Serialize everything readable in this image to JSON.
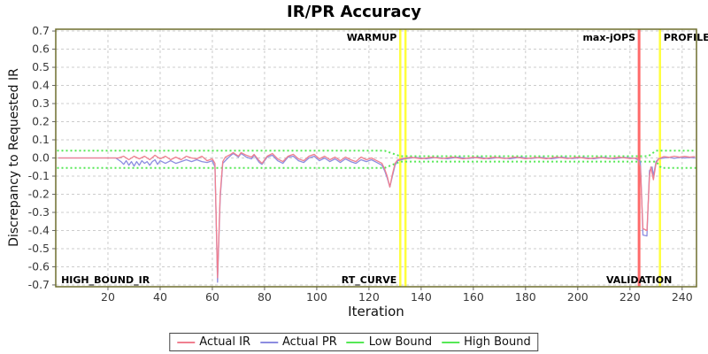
{
  "title": "IR/PR Accuracy",
  "axes": {
    "x_label": "Iteration",
    "y_label": "Discrepancy to Requested IR",
    "x_ticks": [
      20,
      40,
      60,
      80,
      100,
      120,
      140,
      160,
      180,
      200,
      220,
      240
    ],
    "y_ticks": [
      0.7,
      0.6,
      0.5,
      0.4,
      0.3,
      0.2,
      0.1,
      0.0,
      -0.1,
      -0.2,
      -0.3,
      -0.4,
      -0.5,
      -0.6,
      -0.7
    ]
  },
  "colors": {
    "grid": "#cccccc",
    "plot_border": "#6e6e2e",
    "tick_text": "#3a3a3a",
    "annotation_text": "#000000",
    "warmup_marker": "#ffff3c",
    "profile_marker": "#ffff3c",
    "maxjops_marker": "#ff6a6a"
  },
  "chart_data": {
    "type": "line",
    "title": "IR/PR Accuracy",
    "xlabel": "Iteration",
    "ylabel": "Discrepancy to Requested IR",
    "xlim": [
      0,
      245.5
    ],
    "ylim": [
      -0.7,
      0.7
    ],
    "grid": true,
    "legend_position": "bottom",
    "series": [
      {
        "name": "Actual IR",
        "color": "#f08090",
        "style": "solid",
        "points": [
          [
            1,
            0
          ],
          [
            10,
            0
          ],
          [
            20,
            0
          ],
          [
            24,
            0
          ],
          [
            26,
            0.01
          ],
          [
            28,
            -0.01
          ],
          [
            30,
            0.01
          ],
          [
            32,
            -0.005
          ],
          [
            34,
            0.01
          ],
          [
            36,
            -0.01
          ],
          [
            38,
            0.015
          ],
          [
            40,
            -0.005
          ],
          [
            42,
            0.01
          ],
          [
            44,
            -0.01
          ],
          [
            46,
            0.005
          ],
          [
            48,
            -0.01
          ],
          [
            50,
            0.01
          ],
          [
            52,
            0
          ],
          [
            54,
            -0.005
          ],
          [
            56,
            0.01
          ],
          [
            58,
            -0.015
          ],
          [
            60,
            -0.005
          ],
          [
            61,
            -0.03
          ],
          [
            62,
            -0.66
          ],
          [
            63,
            -0.2
          ],
          [
            64,
            -0.02
          ],
          [
            65,
            0.005
          ],
          [
            67,
            0.02
          ],
          [
            68,
            0.03
          ],
          [
            70,
            0.01
          ],
          [
            71,
            0.03
          ],
          [
            73,
            0.015
          ],
          [
            75,
            0.005
          ],
          [
            76,
            0.02
          ],
          [
            78,
            -0.015
          ],
          [
            79,
            -0.03
          ],
          [
            81,
            0.01
          ],
          [
            83,
            0.025
          ],
          [
            85,
            -0.005
          ],
          [
            87,
            -0.02
          ],
          [
            89,
            0.01
          ],
          [
            91,
            0.02
          ],
          [
            93,
            -0.005
          ],
          [
            95,
            -0.015
          ],
          [
            97,
            0.01
          ],
          [
            99,
            0.02
          ],
          [
            101,
            -0.005
          ],
          [
            103,
            0.01
          ],
          [
            105,
            -0.01
          ],
          [
            107,
            0.005
          ],
          [
            109,
            -0.015
          ],
          [
            111,
            0.005
          ],
          [
            113,
            -0.01
          ],
          [
            115,
            -0.02
          ],
          [
            117,
            0.005
          ],
          [
            119,
            -0.01
          ],
          [
            121,
            0
          ],
          [
            123,
            -0.015
          ],
          [
            125,
            -0.03
          ],
          [
            126,
            -0.06
          ],
          [
            127,
            -0.1
          ],
          [
            128,
            -0.16
          ],
          [
            129,
            -0.09
          ],
          [
            130,
            -0.03
          ],
          [
            131,
            -0.01
          ],
          [
            133,
            -0.003
          ],
          [
            136,
            0.004
          ],
          [
            140,
            -0.004
          ],
          [
            144,
            0.004
          ],
          [
            148,
            -0.003
          ],
          [
            152,
            0.005
          ],
          [
            156,
            -0.005
          ],
          [
            160,
            0.004
          ],
          [
            164,
            -0.004
          ],
          [
            168,
            0.004
          ],
          [
            172,
            -0.003
          ],
          [
            176,
            0.005
          ],
          [
            180,
            -0.004
          ],
          [
            184,
            0.003
          ],
          [
            188,
            -0.004
          ],
          [
            192,
            0.005
          ],
          [
            196,
            -0.003
          ],
          [
            200,
            0.004
          ],
          [
            204,
            -0.004
          ],
          [
            208,
            0.003
          ],
          [
            212,
            -0.003
          ],
          [
            216,
            0.004
          ],
          [
            220,
            -0.003
          ],
          [
            223,
            0
          ],
          [
            224,
            -0.05
          ],
          [
            225,
            -0.39
          ],
          [
            226.5,
            -0.4
          ],
          [
            227.5,
            -0.1
          ],
          [
            228,
            -0.05
          ],
          [
            229,
            -0.12
          ],
          [
            230,
            -0.03
          ],
          [
            231,
            -0.005
          ],
          [
            233,
            0.008
          ],
          [
            235,
            0.004
          ],
          [
            237,
            0.01
          ],
          [
            239,
            0.005
          ],
          [
            241,
            0.009
          ],
          [
            243,
            0.005
          ],
          [
            245,
            0.008
          ]
        ]
      },
      {
        "name": "Actual PR",
        "color": "#8c8ce0",
        "style": "solid",
        "points": [
          [
            1,
            0
          ],
          [
            10,
            0
          ],
          [
            20,
            0
          ],
          [
            23,
            0
          ],
          [
            25,
            -0.02
          ],
          [
            26,
            -0.035
          ],
          [
            27,
            -0.015
          ],
          [
            28,
            -0.04
          ],
          [
            29,
            -0.02
          ],
          [
            30,
            -0.045
          ],
          [
            31,
            -0.02
          ],
          [
            32,
            -0.04
          ],
          [
            33,
            -0.015
          ],
          [
            34,
            -0.03
          ],
          [
            35,
            -0.02
          ],
          [
            36,
            -0.04
          ],
          [
            37,
            -0.02
          ],
          [
            38,
            -0.01
          ],
          [
            39,
            -0.035
          ],
          [
            40,
            -0.015
          ],
          [
            42,
            -0.03
          ],
          [
            44,
            -0.015
          ],
          [
            46,
            -0.03
          ],
          [
            48,
            -0.02
          ],
          [
            50,
            -0.01
          ],
          [
            52,
            -0.02
          ],
          [
            54,
            -0.01
          ],
          [
            56,
            -0.02
          ],
          [
            58,
            -0.025
          ],
          [
            60,
            -0.015
          ],
          [
            61,
            -0.05
          ],
          [
            62,
            -0.685
          ],
          [
            63,
            -0.22
          ],
          [
            64,
            -0.03
          ],
          [
            66,
            0
          ],
          [
            68,
            0.025
          ],
          [
            70,
            0.005
          ],
          [
            71,
            0.025
          ],
          [
            73,
            0.005
          ],
          [
            75,
            -0.005
          ],
          [
            76,
            0.015
          ],
          [
            78,
            -0.025
          ],
          [
            79,
            -0.035
          ],
          [
            81,
            0.005
          ],
          [
            83,
            0.015
          ],
          [
            85,
            -0.015
          ],
          [
            87,
            -0.03
          ],
          [
            89,
            0.005
          ],
          [
            91,
            0.01
          ],
          [
            93,
            -0.015
          ],
          [
            95,
            -0.025
          ],
          [
            97,
            0
          ],
          [
            99,
            0.01
          ],
          [
            101,
            -0.015
          ],
          [
            103,
            0
          ],
          [
            105,
            -0.02
          ],
          [
            107,
            -0.005
          ],
          [
            109,
            -0.025
          ],
          [
            111,
            -0.005
          ],
          [
            113,
            -0.02
          ],
          [
            115,
            -0.03
          ],
          [
            117,
            -0.01
          ],
          [
            119,
            -0.02
          ],
          [
            121,
            -0.01
          ],
          [
            123,
            -0.025
          ],
          [
            125,
            -0.04
          ],
          [
            126,
            -0.07
          ],
          [
            127,
            -0.11
          ],
          [
            128,
            -0.16
          ],
          [
            129,
            -0.1
          ],
          [
            130,
            -0.04
          ],
          [
            131,
            -0.015
          ],
          [
            134,
            -0.004
          ],
          [
            138,
            0.003
          ],
          [
            142,
            -0.004
          ],
          [
            146,
            0.003
          ],
          [
            150,
            -0.004
          ],
          [
            154,
            0.004
          ],
          [
            158,
            -0.003
          ],
          [
            162,
            0.004
          ],
          [
            166,
            -0.004
          ],
          [
            170,
            0.003
          ],
          [
            174,
            -0.004
          ],
          [
            178,
            0.004
          ],
          [
            182,
            -0.003
          ],
          [
            186,
            0.003
          ],
          [
            190,
            -0.004
          ],
          [
            194,
            0.004
          ],
          [
            198,
            -0.003
          ],
          [
            202,
            0.003
          ],
          [
            206,
            -0.004
          ],
          [
            210,
            0.003
          ],
          [
            214,
            -0.004
          ],
          [
            218,
            0.003
          ],
          [
            222,
            -0.002
          ],
          [
            224,
            -0.02
          ],
          [
            225,
            -0.425
          ],
          [
            226.5,
            -0.43
          ],
          [
            227.5,
            -0.07
          ],
          [
            228.5,
            -0.05
          ],
          [
            229,
            -0.1
          ],
          [
            230,
            -0.02
          ],
          [
            231,
            -0.005
          ],
          [
            233,
            0
          ],
          [
            235,
            0.004
          ],
          [
            237,
            -0.002
          ],
          [
            239,
            0.003
          ],
          [
            241,
            0
          ],
          [
            243,
            0.003
          ],
          [
            245,
            0
          ]
        ]
      },
      {
        "name": "Low Bound",
        "color": "#55e855",
        "style": "dotted",
        "points": [
          [
            0.5,
            -0.055
          ],
          [
            126,
            -0.055
          ],
          [
            132,
            -0.02
          ],
          [
            230,
            -0.02
          ],
          [
            232,
            -0.055
          ],
          [
            245.5,
            -0.055
          ]
        ]
      },
      {
        "name": "High Bound",
        "color": "#55e855",
        "style": "dotted",
        "points": [
          [
            0.5,
            0.04
          ],
          [
            126,
            0.04
          ],
          [
            132,
            0.01
          ],
          [
            227,
            0.01
          ],
          [
            230,
            0.04
          ],
          [
            245.5,
            0.04
          ]
        ]
      }
    ],
    "markers": [
      {
        "name": "warmup-end-line",
        "x": 132,
        "color": "#ffff3c",
        "width": 2.5
      },
      {
        "name": "rt-curve-start-line",
        "x": 134,
        "color": "#ffff3c",
        "width": 2.5
      },
      {
        "name": "max-jops-line",
        "x": 223.5,
        "color": "#ff6a6a",
        "width": 3
      },
      {
        "name": "profile-line",
        "x": 231.5,
        "color": "#ffff3c",
        "width": 2.5
      }
    ],
    "annotations": [
      {
        "text": "WARMUP",
        "x": 132,
        "pos": "top",
        "align": "end"
      },
      {
        "text": "RT_CURVE",
        "x": 132,
        "pos": "bottom",
        "align": "end"
      },
      {
        "text": "max-jOPS",
        "x": 223.5,
        "pos": "top",
        "align": "end"
      },
      {
        "text": "VALIDATION",
        "x": 223.5,
        "pos": "bottom",
        "align": "middle"
      },
      {
        "text": "PROFILE",
        "x": 231.5,
        "pos": "top",
        "align": "start"
      },
      {
        "text": "HIGH_BOUND_IR",
        "x": 0.7,
        "pos": "bottom",
        "align": "start"
      }
    ]
  }
}
